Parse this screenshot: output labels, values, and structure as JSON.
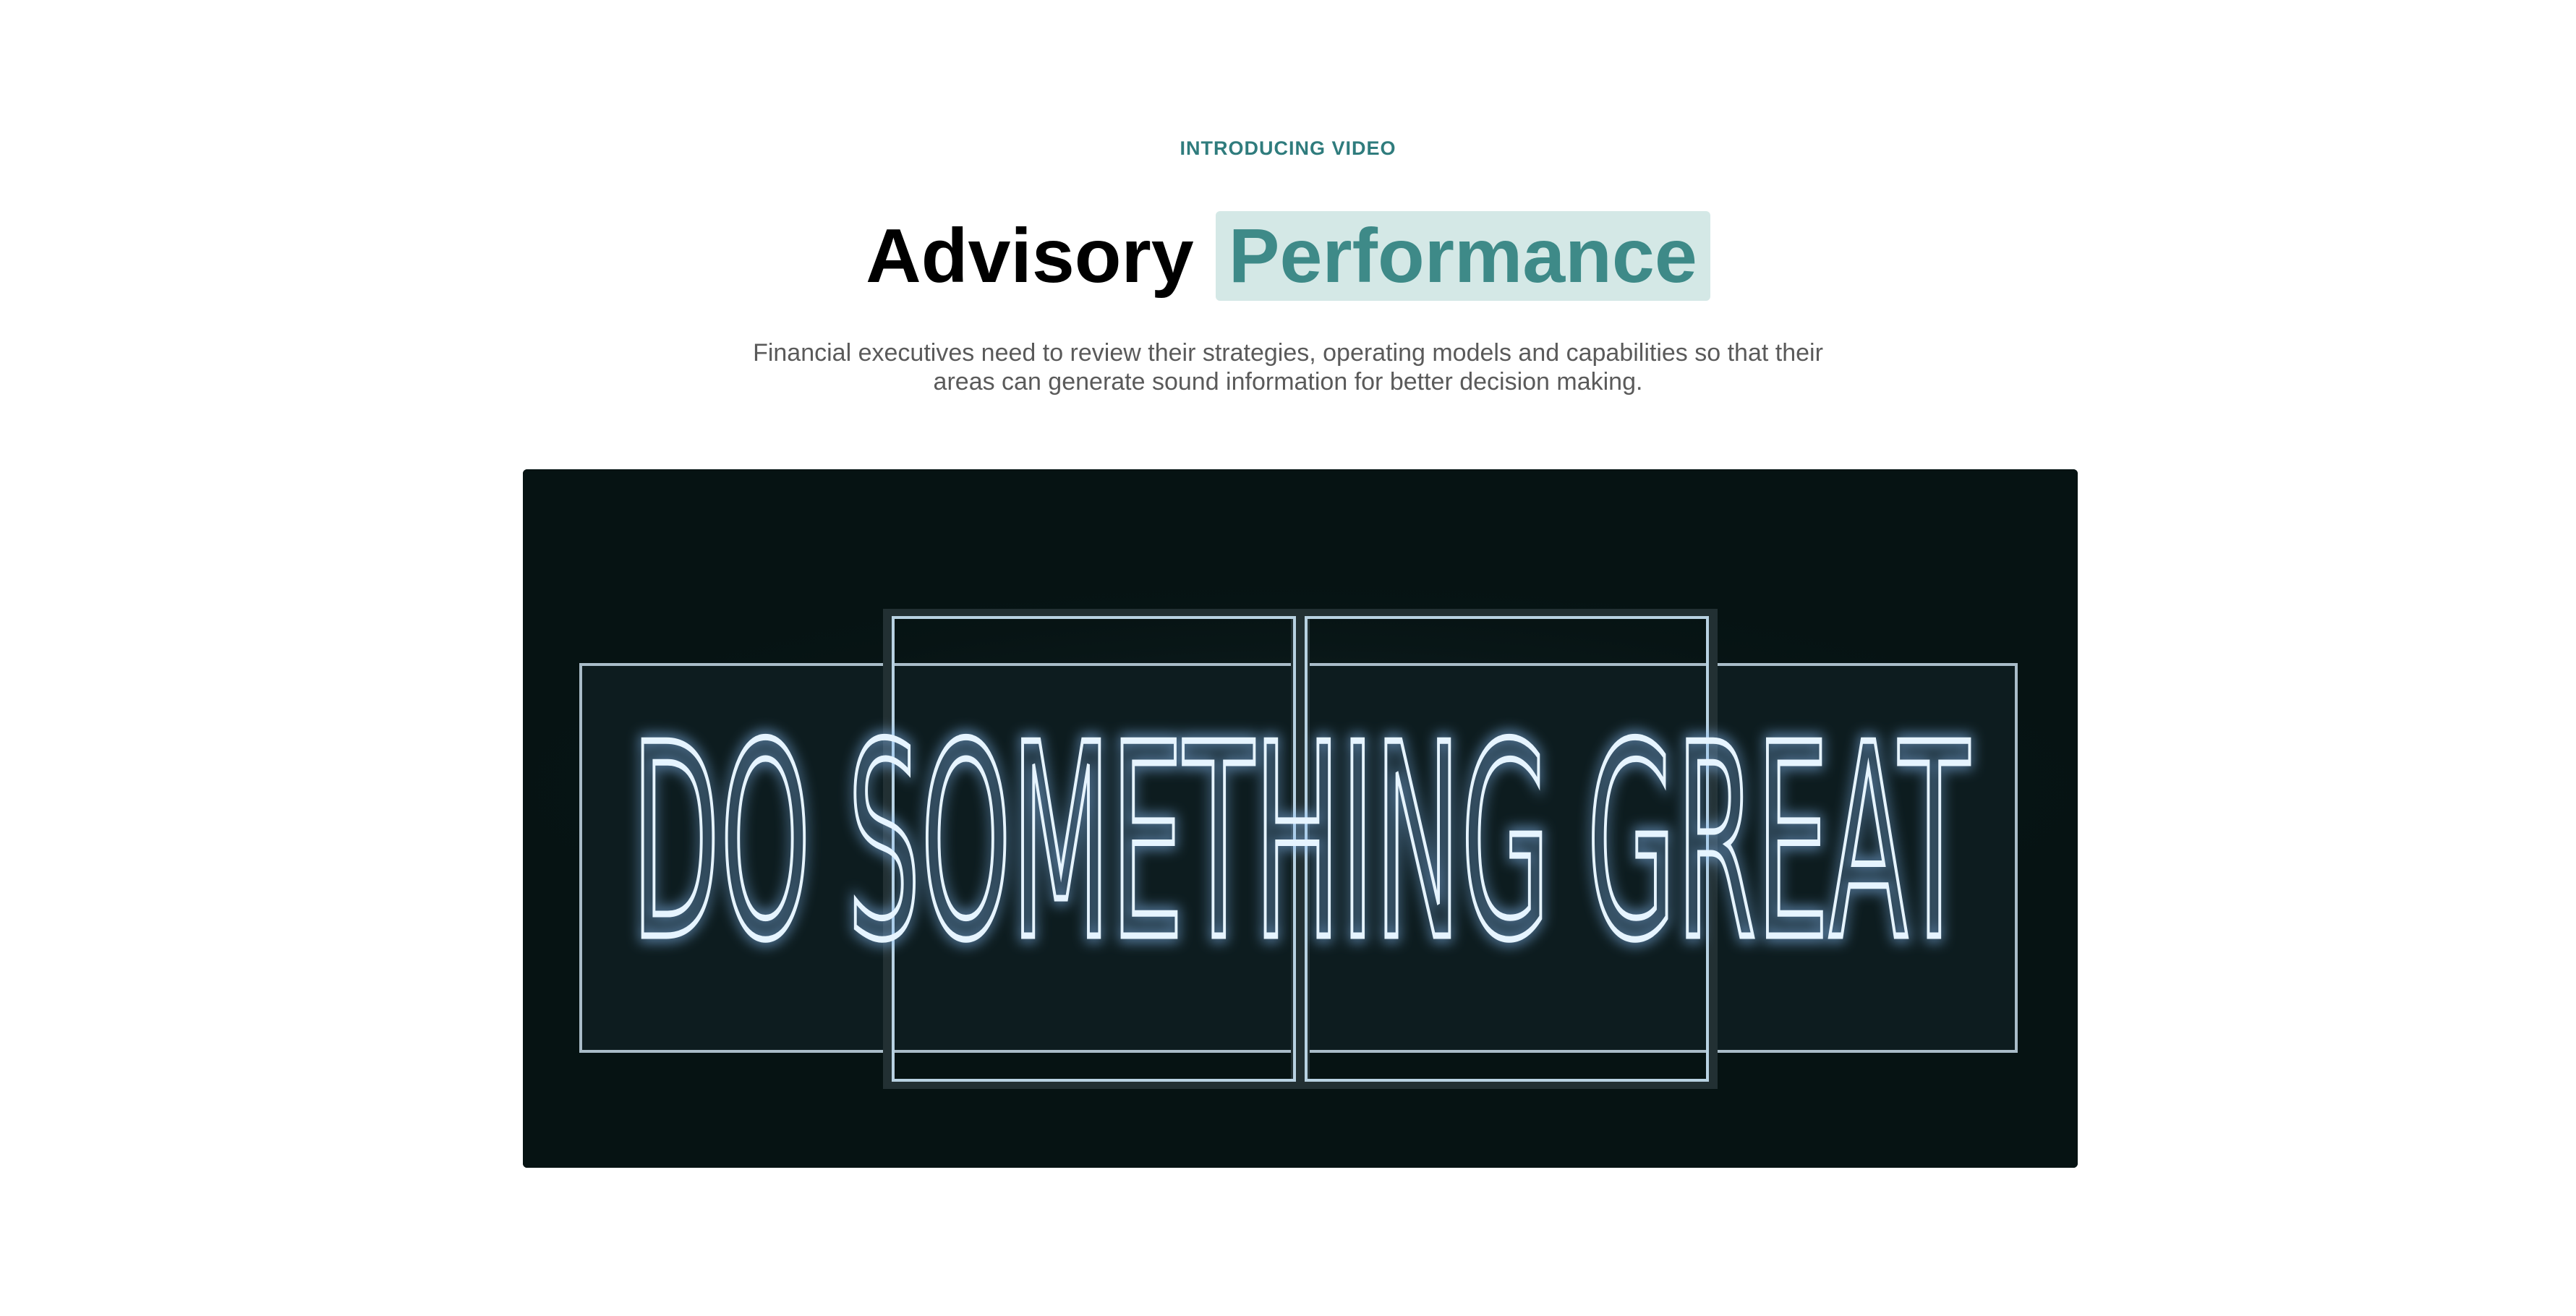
{
  "section": {
    "eyebrow": "INTRODUCING VIDEO",
    "title_plain": "Advisory",
    "title_highlight": "Performance",
    "description_line1": "Financial executives need to review their strategies, operating models and capabilities so that their",
    "description_line2": "areas can generate sound information for better decision making."
  },
  "video": {
    "sign_text": "DO SOMETHING GREAT"
  },
  "colors": {
    "accent": "#2f7c7d",
    "highlight_bg": "#d4e8e6",
    "highlight_text": "#3e8a88",
    "video_bg": "#061313",
    "neon": "#e6f4ff"
  }
}
